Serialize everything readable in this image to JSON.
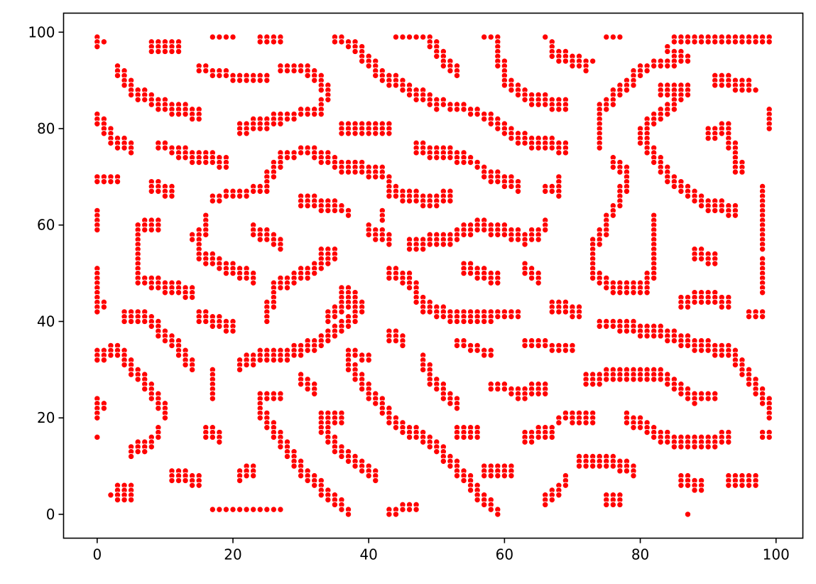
{
  "chart_data": {
    "type": "scatter",
    "title": "",
    "xlabel": "",
    "ylabel": "",
    "xlim": [
      -4.95,
      103.95
    ],
    "ylim": [
      -4.95,
      103.95
    ],
    "x_ticks": [
      0,
      20,
      40,
      60,
      80,
      100
    ],
    "y_ticks": [
      0,
      20,
      40,
      60,
      80,
      100
    ],
    "x_tick_labels": [
      "0",
      "20",
      "40",
      "60",
      "80",
      "100"
    ],
    "y_tick_labels": [
      "0",
      "20",
      "40",
      "60",
      "80",
      "100"
    ],
    "grid": false,
    "legend": "none",
    "marker_color": "#ff0000",
    "marker_edge_color": "#ffffff",
    "description": "Integer-lattice scatter forming a labyrinthine stripe pattern; each segment is [x0, y0, x1, y1, thickness].",
    "segments": [
      [
        0,
        99,
        0,
        97,
        1
      ],
      [
        1,
        98,
        1,
        98,
        1
      ],
      [
        8,
        98,
        12,
        98,
        3
      ],
      [
        17,
        99,
        19,
        99,
        1
      ],
      [
        20,
        99,
        20,
        99,
        1
      ],
      [
        24,
        99,
        27,
        99,
        2
      ],
      [
        35,
        99,
        38,
        98,
        2
      ],
      [
        38,
        98,
        42,
        92,
        3
      ],
      [
        42,
        92,
        50,
        86,
        3
      ],
      [
        50,
        86,
        58,
        83,
        2
      ],
      [
        58,
        83,
        62,
        79,
        3
      ],
      [
        62,
        79,
        69,
        77,
        3
      ],
      [
        44,
        99,
        48,
        99,
        1
      ],
      [
        49,
        99,
        51,
        95,
        3
      ],
      [
        51,
        95,
        53,
        93,
        3
      ],
      [
        57,
        99,
        59,
        99,
        1
      ],
      [
        59,
        98,
        60,
        91,
        3
      ],
      [
        60,
        91,
        64,
        87,
        3
      ],
      [
        64,
        87,
        69,
        86,
        3
      ],
      [
        66,
        99,
        67,
        98,
        1
      ],
      [
        67,
        97,
        72,
        94,
        3
      ],
      [
        73,
        94,
        73,
        94,
        1
      ],
      [
        75,
        99,
        77,
        99,
        1
      ],
      [
        85,
        99,
        99,
        99,
        2
      ],
      [
        84,
        97,
        87,
        95,
        2
      ],
      [
        87,
        95,
        80,
        93,
        2
      ],
      [
        80,
        93,
        74,
        85,
        3
      ],
      [
        74,
        85,
        74,
        78,
        3
      ],
      [
        3,
        93,
        5,
        89,
        3
      ],
      [
        5,
        89,
        11,
        85,
        3
      ],
      [
        11,
        85,
        15,
        84,
        3
      ],
      [
        15,
        93,
        17,
        92,
        2
      ],
      [
        17,
        92,
        21,
        91,
        2
      ],
      [
        21,
        91,
        25,
        91,
        2
      ],
      [
        27,
        93,
        31,
        93,
        2
      ],
      [
        31,
        93,
        34,
        89,
        3
      ],
      [
        34,
        89,
        33,
        84,
        2
      ],
      [
        33,
        84,
        27,
        83,
        2
      ],
      [
        27,
        83,
        21,
        81,
        3
      ],
      [
        0,
        83,
        2,
        79,
        3
      ],
      [
        2,
        79,
        5,
        77,
        3
      ],
      [
        9,
        77,
        12,
        76,
        2
      ],
      [
        12,
        76,
        19,
        74,
        3
      ],
      [
        36,
        81,
        43,
        81,
        3
      ],
      [
        91,
        91,
        96,
        90,
        3
      ],
      [
        97,
        88,
        97,
        88,
        1
      ],
      [
        83,
        89,
        87,
        89,
        3
      ],
      [
        87,
        89,
        82,
        83,
        3
      ],
      [
        82,
        83,
        80,
        80,
        3
      ],
      [
        80,
        80,
        84,
        71,
        3
      ],
      [
        84,
        71,
        90,
        65,
        3
      ],
      [
        90,
        65,
        94,
        64,
        3
      ],
      [
        99,
        84,
        99,
        80,
        1
      ],
      [
        90,
        80,
        93,
        81,
        3
      ],
      [
        93,
        81,
        94,
        73,
        3
      ],
      [
        94,
        73,
        95,
        73,
        3
      ],
      [
        47,
        77,
        54,
        75,
        3
      ],
      [
        54,
        75,
        57,
        72,
        2
      ],
      [
        57,
        72,
        62,
        69,
        3
      ],
      [
        0,
        70,
        3,
        70,
        2
      ],
      [
        8,
        69,
        11,
        68,
        3
      ],
      [
        25,
        70,
        27,
        75,
        3
      ],
      [
        27,
        75,
        32,
        76,
        2
      ],
      [
        32,
        76,
        36,
        73,
        3
      ],
      [
        36,
        73,
        42,
        72,
        3
      ],
      [
        42,
        72,
        43,
        68,
        2
      ],
      [
        43,
        68,
        49,
        66,
        3
      ],
      [
        49,
        66,
        52,
        67,
        3
      ],
      [
        17,
        66,
        21,
        67,
        2
      ],
      [
        21,
        67,
        25,
        68,
        2
      ],
      [
        30,
        66,
        35,
        65,
        3
      ],
      [
        35,
        65,
        37,
        63,
        2
      ],
      [
        68,
        70,
        68,
        68,
        2
      ],
      [
        66,
        68,
        68,
        67,
        2
      ],
      [
        76,
        74,
        78,
        72,
        3
      ],
      [
        78,
        72,
        77,
        66,
        3
      ],
      [
        77,
        66,
        75,
        61,
        2
      ],
      [
        75,
        61,
        73,
        57,
        3
      ],
      [
        73,
        57,
        73,
        51,
        3
      ],
      [
        73,
        51,
        76,
        48,
        3
      ],
      [
        76,
        48,
        81,
        48,
        3
      ],
      [
        81,
        48,
        82,
        53,
        3
      ],
      [
        82,
        53,
        82,
        62,
        3
      ],
      [
        98,
        68,
        98,
        56,
        2
      ],
      [
        0,
        63,
        0,
        59,
        1
      ],
      [
        7,
        61,
        9,
        61,
        3
      ],
      [
        6,
        60,
        6,
        49,
        2
      ],
      [
        6,
        49,
        8,
        49,
        2
      ],
      [
        8,
        49,
        14,
        47,
        3
      ],
      [
        14,
        58,
        16,
        60,
        2
      ],
      [
        16,
        62,
        15,
        55,
        2
      ],
      [
        15,
        55,
        19,
        52,
        3
      ],
      [
        19,
        52,
        23,
        50,
        3
      ],
      [
        23,
        60,
        27,
        57,
        3
      ],
      [
        42,
        63,
        42,
        61,
        1
      ],
      [
        40,
        60,
        43,
        58,
        3
      ],
      [
        46,
        57,
        52,
        58,
        3
      ],
      [
        52,
        58,
        56,
        61,
        3
      ],
      [
        56,
        61,
        62,
        59,
        3
      ],
      [
        63,
        58,
        65,
        59,
        3
      ],
      [
        65,
        59,
        66,
        61,
        2
      ],
      [
        88,
        55,
        91,
        54,
        3
      ],
      [
        98,
        53,
        98,
        47,
        2
      ],
      [
        0,
        51,
        0,
        42,
        1
      ],
      [
        1,
        44,
        1,
        43,
        1
      ],
      [
        33,
        55,
        35,
        55,
        3
      ],
      [
        35,
        55,
        32,
        52,
        3
      ],
      [
        32,
        52,
        26,
        48,
        3
      ],
      [
        26,
        48,
        25,
        42,
        3
      ],
      [
        43,
        51,
        46,
        50,
        3
      ],
      [
        46,
        50,
        48,
        44,
        3
      ],
      [
        48,
        44,
        52,
        42,
        3
      ],
      [
        52,
        42,
        58,
        42,
        3
      ],
      [
        58,
        42,
        62,
        42,
        2
      ],
      [
        54,
        52,
        59,
        50,
        3
      ],
      [
        63,
        52,
        65,
        50,
        3
      ],
      [
        36,
        47,
        38,
        46,
        3
      ],
      [
        38,
        46,
        34,
        42,
        3
      ],
      [
        67,
        44,
        71,
        43,
        3
      ],
      [
        86,
        45,
        90,
        46,
        3
      ],
      [
        90,
        46,
        93,
        45,
        3
      ],
      [
        96,
        42,
        98,
        42,
        2
      ],
      [
        4,
        42,
        7,
        42,
        3
      ],
      [
        7,
        42,
        11,
        37,
        3
      ],
      [
        11,
        37,
        14,
        32,
        3
      ],
      [
        15,
        42,
        20,
        40,
        3
      ],
      [
        43,
        38,
        45,
        37,
        3
      ],
      [
        74,
        40,
        77,
        40,
        2
      ],
      [
        77,
        40,
        82,
        39,
        3
      ],
      [
        82,
        39,
        88,
        36,
        3
      ],
      [
        88,
        36,
        93,
        35,
        3
      ],
      [
        93,
        35,
        96,
        30,
        3
      ],
      [
        96,
        30,
        98,
        25,
        3
      ],
      [
        21,
        32,
        24,
        34,
        3
      ],
      [
        24,
        34,
        28,
        34,
        3
      ],
      [
        28,
        34,
        33,
        37,
        3
      ],
      [
        33,
        37,
        36,
        40,
        3
      ],
      [
        36,
        40,
        39,
        44,
        3
      ],
      [
        0,
        34,
        3,
        35,
        3
      ],
      [
        3,
        35,
        5,
        31,
        3
      ],
      [
        5,
        31,
        8,
        27,
        3
      ],
      [
        8,
        27,
        10,
        22,
        3
      ],
      [
        37,
        34,
        40,
        33,
        2
      ],
      [
        37,
        32,
        39,
        28,
        3
      ],
      [
        39,
        28,
        44,
        20,
        3
      ],
      [
        44,
        20,
        50,
        15,
        3
      ],
      [
        50,
        15,
        54,
        9,
        3
      ],
      [
        54,
        9,
        57,
        4,
        3
      ],
      [
        57,
        4,
        59,
        0,
        2
      ],
      [
        48,
        33,
        49,
        29,
        3
      ],
      [
        49,
        29,
        53,
        24,
        3
      ],
      [
        53,
        36,
        58,
        34,
        2
      ],
      [
        63,
        36,
        70,
        35,
        2
      ],
      [
        17,
        30,
        17,
        25,
        2
      ],
      [
        30,
        29,
        32,
        27,
        3
      ],
      [
        72,
        29,
        78,
        30,
        3
      ],
      [
        78,
        30,
        83,
        30,
        3
      ],
      [
        83,
        30,
        88,
        25,
        3
      ],
      [
        88,
        25,
        91,
        25,
        2
      ],
      [
        24,
        25,
        27,
        25,
        2
      ],
      [
        24,
        23,
        28,
        14,
        3
      ],
      [
        28,
        14,
        31,
        9,
        3
      ],
      [
        31,
        9,
        35,
        4,
        3
      ],
      [
        35,
        4,
        37,
        1,
        2
      ],
      [
        58,
        27,
        62,
        26,
        2
      ],
      [
        62,
        26,
        66,
        27,
        3
      ],
      [
        0,
        24,
        0,
        20,
        1
      ],
      [
        1,
        23,
        1,
        22,
        1
      ],
      [
        99,
        24,
        99,
        20,
        1
      ],
      [
        33,
        21,
        36,
        21,
        3
      ],
      [
        33,
        19,
        36,
        14,
        3
      ],
      [
        36,
        14,
        41,
        9,
        3
      ],
      [
        70,
        21,
        73,
        21,
        3
      ],
      [
        68,
        20,
        70,
        21,
        2
      ],
      [
        78,
        21,
        82,
        18,
        3
      ],
      [
        82,
        18,
        85,
        16,
        3
      ],
      [
        85,
        16,
        90,
        16,
        3
      ],
      [
        90,
        16,
        93,
        17,
        3
      ],
      [
        5,
        14,
        8,
        16,
        3
      ],
      [
        8,
        16,
        9,
        18,
        2
      ],
      [
        16,
        18,
        18,
        17,
        3
      ],
      [
        53,
        18,
        56,
        18,
        3
      ],
      [
        63,
        17,
        67,
        18,
        3
      ],
      [
        98,
        17,
        99,
        17,
        2
      ],
      [
        71,
        12,
        75,
        12,
        3
      ],
      [
        75,
        12,
        79,
        10,
        3
      ],
      [
        0,
        16,
        0,
        16,
        1
      ],
      [
        57,
        10,
        61,
        10,
        3
      ],
      [
        21,
        9,
        23,
        10,
        3
      ],
      [
        11,
        9,
        15,
        8,
        3
      ],
      [
        86,
        8,
        89,
        7,
        3
      ],
      [
        93,
        8,
        97,
        8,
        3
      ],
      [
        3,
        6,
        5,
        6,
        4
      ],
      [
        2,
        4,
        2,
        4,
        1
      ],
      [
        66,
        4,
        68,
        6,
        3
      ],
      [
        68,
        6,
        69,
        8,
        2
      ],
      [
        75,
        4,
        77,
        4,
        3
      ],
      [
        17,
        1,
        27,
        1,
        1
      ],
      [
        43,
        1,
        47,
        2,
        2
      ],
      [
        87,
        0,
        87,
        0,
        1
      ]
    ]
  }
}
